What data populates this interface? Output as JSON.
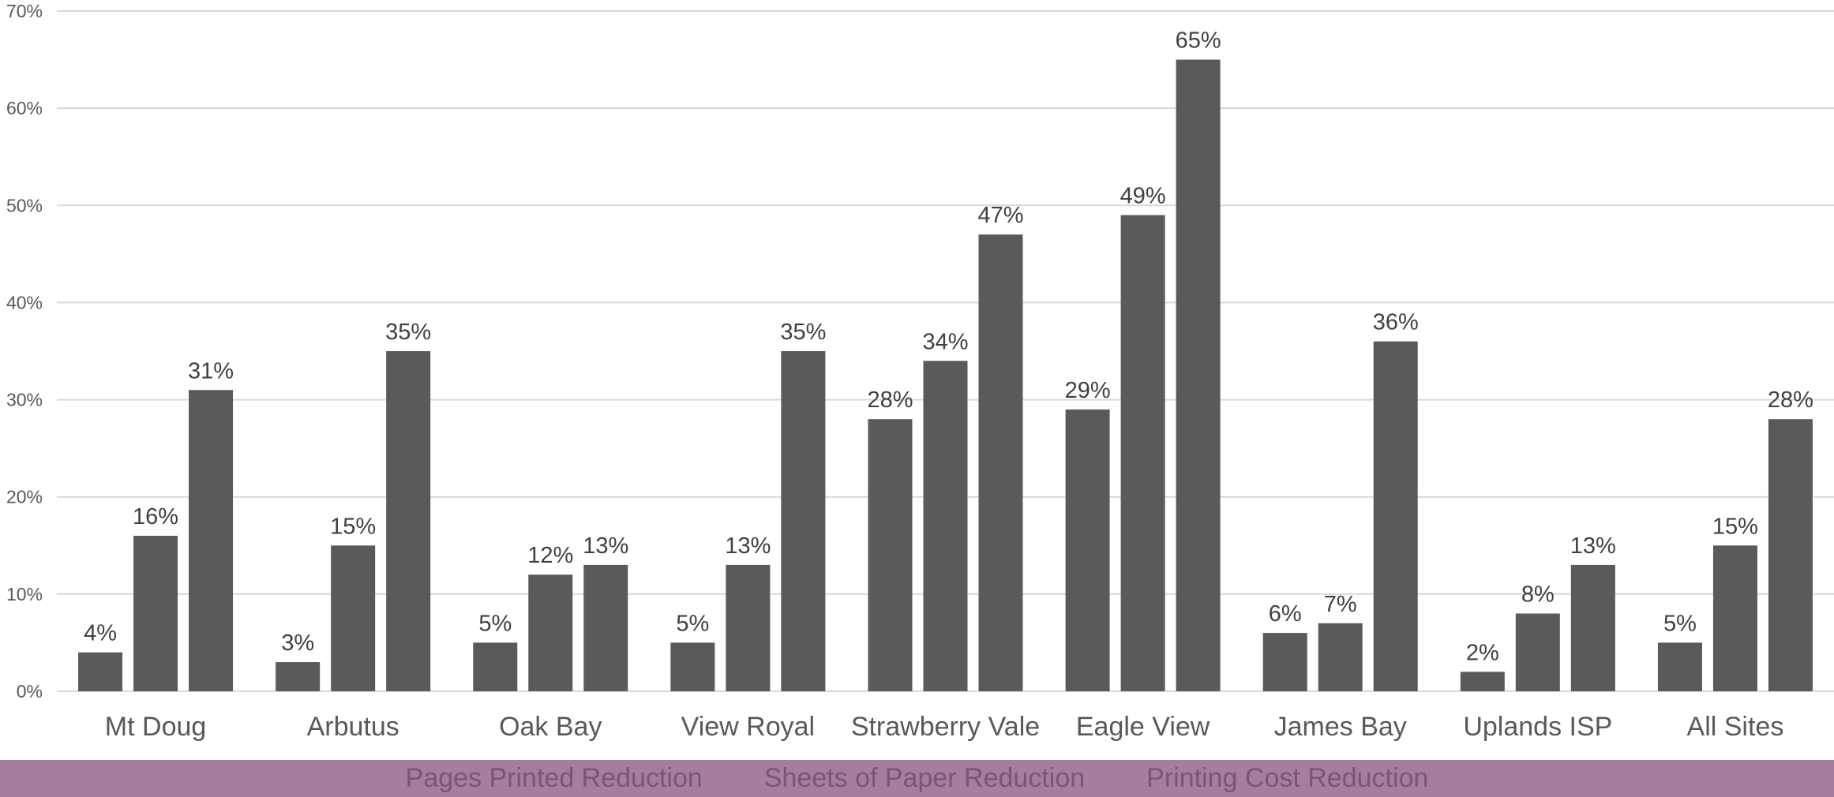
{
  "chart_data": {
    "type": "bar",
    "categories": [
      "Mt Doug",
      "Arbutus",
      "Oak Bay",
      "View Royal",
      "Strawberry Vale",
      "Eagle View",
      "James Bay",
      "Uplands ISP",
      "All Sites"
    ],
    "series": [
      {
        "name": "Pages Printed Reduction",
        "values": [
          4,
          3,
          5,
          5,
          28,
          29,
          6,
          2,
          5
        ],
        "labels": [
          "4%",
          "3%",
          "5%",
          "5%",
          "28%",
          "29%",
          "6%",
          "2%",
          "5%"
        ]
      },
      {
        "name": "Sheets of Paper Reduction",
        "values": [
          16,
          15,
          12,
          13,
          34,
          49,
          7,
          8,
          15
        ],
        "labels": [
          "16%",
          "15%",
          "12%",
          "13%",
          "34%",
          "49%",
          "7%",
          "8%",
          "15%"
        ]
      },
      {
        "name": "Printing Cost Reduction",
        "values": [
          31,
          35,
          13,
          35,
          47,
          65,
          36,
          13,
          28
        ],
        "labels": [
          "31%",
          "35%",
          "13%",
          "35%",
          "47%",
          "65%",
          "36%",
          "13%",
          "28%"
        ]
      }
    ],
    "ylim": [
      0,
      70
    ],
    "yticks": [
      "0%",
      "10%",
      "20%",
      "30%",
      "40%",
      "50%",
      "60%",
      "70%"
    ],
    "grid": true,
    "legend_position": "bottom"
  },
  "colors": {
    "bar": "#5a5a5a",
    "grid": "#d9d9d9",
    "tick_text": "#595959",
    "label_text": "#404040",
    "legend_band": "#a67c9f",
    "legend_text": "#6e5468"
  }
}
